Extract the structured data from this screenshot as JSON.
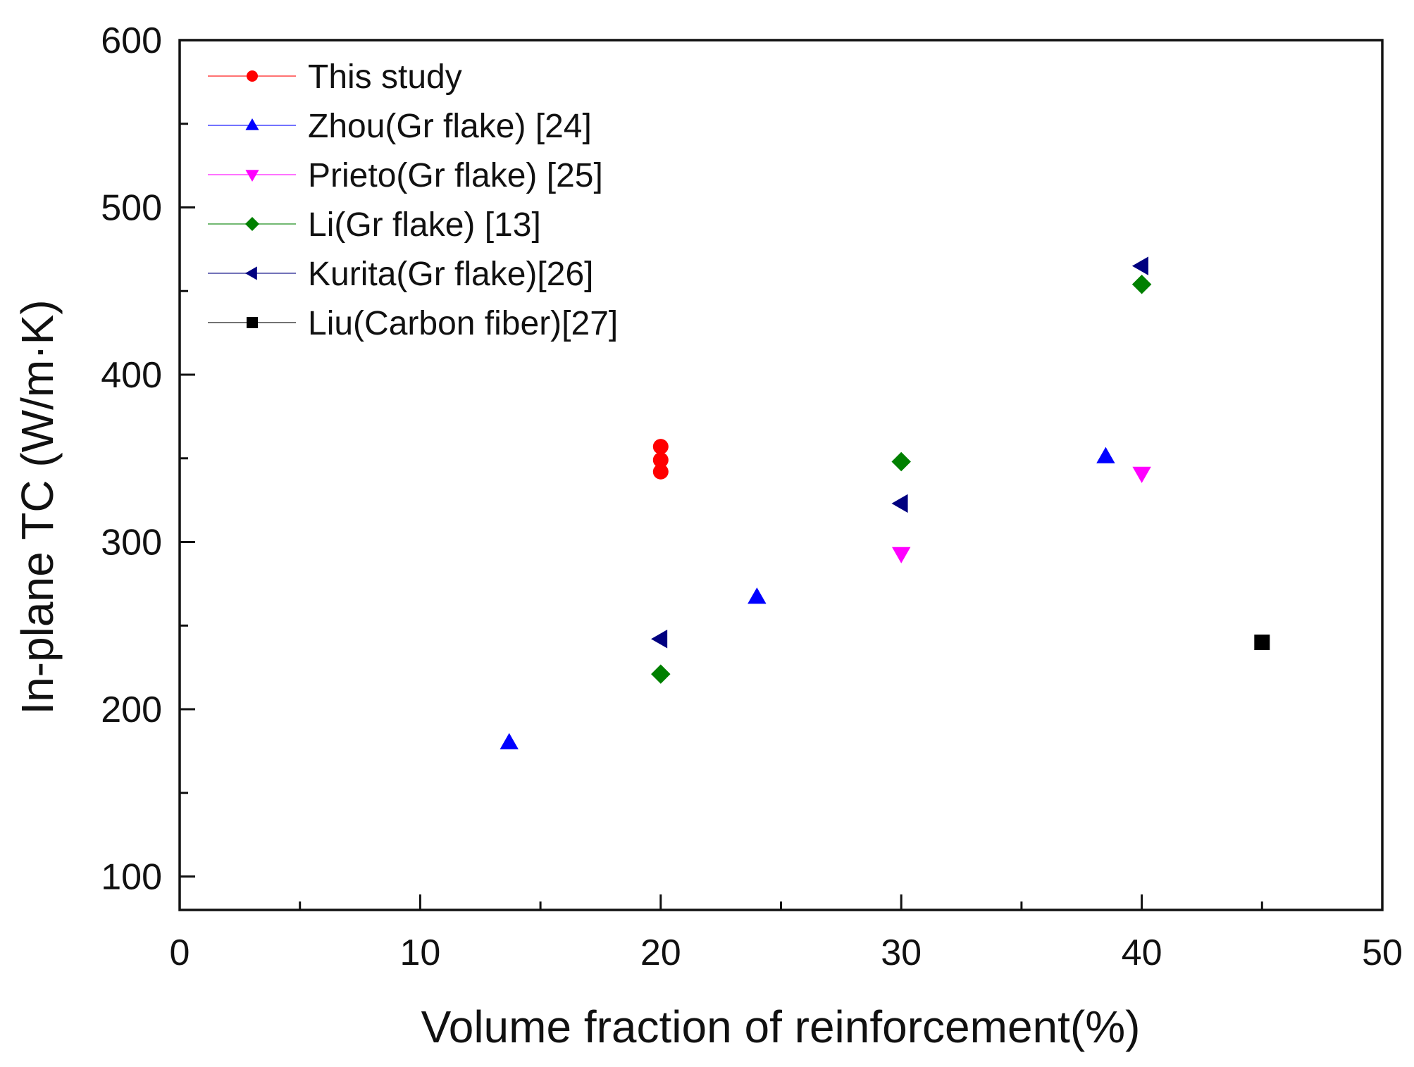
{
  "chart_data": {
    "type": "scatter",
    "title": "",
    "xlabel": "Volume fraction of reinforcement(%)",
    "ylabel": "In-plane TC (W/m·K)",
    "xlim": [
      0,
      50
    ],
    "ylim": [
      80,
      600
    ],
    "xticks": [
      0,
      10,
      20,
      30,
      40,
      50
    ],
    "xminor": [
      5,
      15,
      25,
      35,
      45
    ],
    "yticks": [
      100,
      200,
      300,
      400,
      500,
      600
    ],
    "yminor": [
      150,
      250,
      350,
      450,
      550
    ],
    "grid": false,
    "legend_position": "top-left",
    "series": [
      {
        "name": "This study",
        "marker": "circle",
        "color": "#ff0000",
        "x": [
          20,
          20,
          20
        ],
        "y": [
          342,
          349,
          357
        ]
      },
      {
        "name": "Zhou(Gr flake) [24]",
        "marker": "triangle-up",
        "color": "#0000ff",
        "x": [
          13.7,
          24,
          38.5
        ],
        "y": [
          180,
          267,
          351
        ]
      },
      {
        "name": "Prieto(Gr flake) [25]",
        "marker": "triangle-down",
        "color": "#ff00ff",
        "x": [
          30,
          40
        ],
        "y": [
          293,
          341
        ]
      },
      {
        "name": "Li(Gr flake) [13]",
        "marker": "diamond",
        "color": "#008000",
        "x": [
          20,
          30,
          40
        ],
        "y": [
          221,
          348,
          454
        ]
      },
      {
        "name": "Kurita(Gr flake)[26]",
        "marker": "triangle-left",
        "color": "#000080",
        "x": [
          20,
          30,
          40
        ],
        "y": [
          242,
          323,
          465
        ]
      },
      {
        "name": "Liu(Carbon fiber)[27]",
        "marker": "square",
        "color": "#000000",
        "x": [
          45
        ],
        "y": [
          240
        ]
      }
    ]
  }
}
